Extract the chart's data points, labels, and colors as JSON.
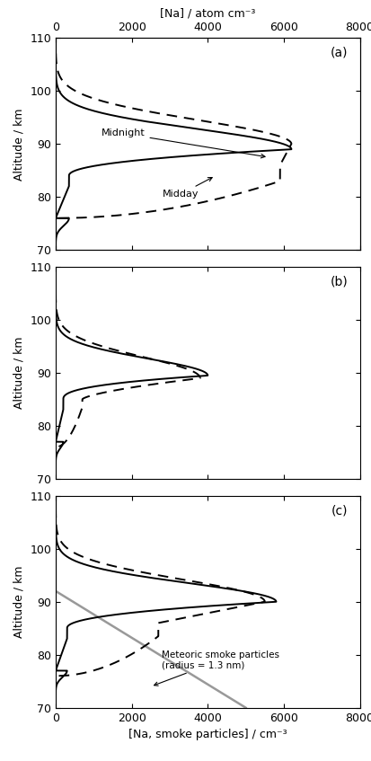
{
  "top_xlabel": "[Na] / atom cm⁻³",
  "bottom_xlabel": "[Na, smoke particles] / cm⁻³",
  "ylabel": "Altitude / km",
  "xlim": [
    0,
    8000
  ],
  "ylim": [
    70,
    110
  ],
  "xticks": [
    0,
    2000,
    4000,
    6000,
    8000
  ],
  "yticks": [
    70,
    80,
    90,
    100,
    110
  ],
  "panel_labels": [
    "(a)",
    "(b)",
    "(c)"
  ],
  "background_color": "#ffffff",
  "line_color": "#000000",
  "smoke_line_color": "#999999",
  "lw_solid": 1.4,
  "lw_dashed": 1.4,
  "fontsize_label": 9,
  "fontsize_panel": 10,
  "fontsize_annot": 8
}
